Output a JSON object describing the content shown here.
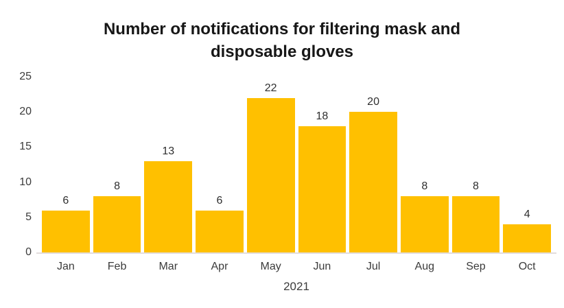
{
  "colors": {
    "bar_fill": "#FFC000",
    "axis_line": "#E2DCDC",
    "title_text": "#171717",
    "label_text": "#3B3B3B"
  },
  "chart_data": {
    "type": "bar",
    "title": "Number of notifications for filtering mask and disposable gloves",
    "categories": [
      "Jan",
      "Feb",
      "Mar",
      "Apr",
      "May",
      "Jun",
      "Jul",
      "Aug",
      "Sep",
      "Oct"
    ],
    "values": [
      6,
      8,
      13,
      6,
      22,
      18,
      20,
      8,
      8,
      4
    ],
    "xlabel": "2021",
    "ylabel": "",
    "ylim": [
      0,
      25
    ],
    "yticks": [
      0,
      5,
      10,
      15,
      20,
      25
    ],
    "grid": false,
    "legend": false,
    "data_labels": true,
    "bar_color": "#FFC000"
  }
}
